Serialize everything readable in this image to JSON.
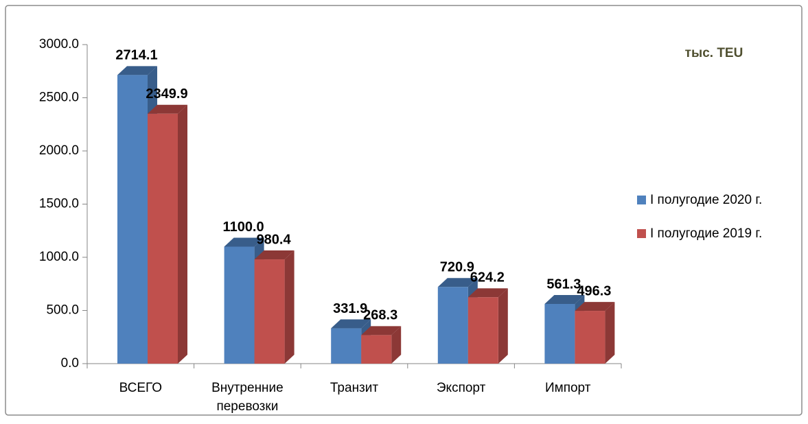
{
  "chart_data": {
    "type": "bar3d",
    "annotations": [
      "тыс. TEU"
    ],
    "categories": [
      "ВСЕГО",
      "Внутренние перевозки",
      "Транзит",
      "Экспорт",
      "Импорт"
    ],
    "series": [
      {
        "name": "I полугодие 2020 г.",
        "color": "#4f81bd",
        "side_color": "#385d8a",
        "values": [
          2714.1,
          1100.0,
          331.9,
          720.9,
          561.3
        ],
        "value_labels": [
          "2714.1",
          "1100.0",
          "331.9",
          "720.9",
          "561.3"
        ]
      },
      {
        "name": "I полугодие 2019 г.",
        "color": "#c0504d",
        "side_color": "#8c3836",
        "values": [
          2349.9,
          980.4,
          268.3,
          624.2,
          496.3
        ],
        "value_labels": [
          "2349.9",
          "980.4",
          "268.3",
          "624.2",
          "496.3"
        ]
      }
    ],
    "ylim": [
      0,
      3000
    ],
    "yticks": [
      {
        "value": 0,
        "label": "0.0"
      },
      {
        "value": 500,
        "label": "500.0"
      },
      {
        "value": 1000,
        "label": "1000.0"
      },
      {
        "value": 1500,
        "label": "1500.0"
      },
      {
        "value": 2000,
        "label": "2000.0"
      },
      {
        "value": 2500,
        "label": "2500.0"
      },
      {
        "value": 3000,
        "label": "3000.0"
      }
    ],
    "legend": "right"
  }
}
